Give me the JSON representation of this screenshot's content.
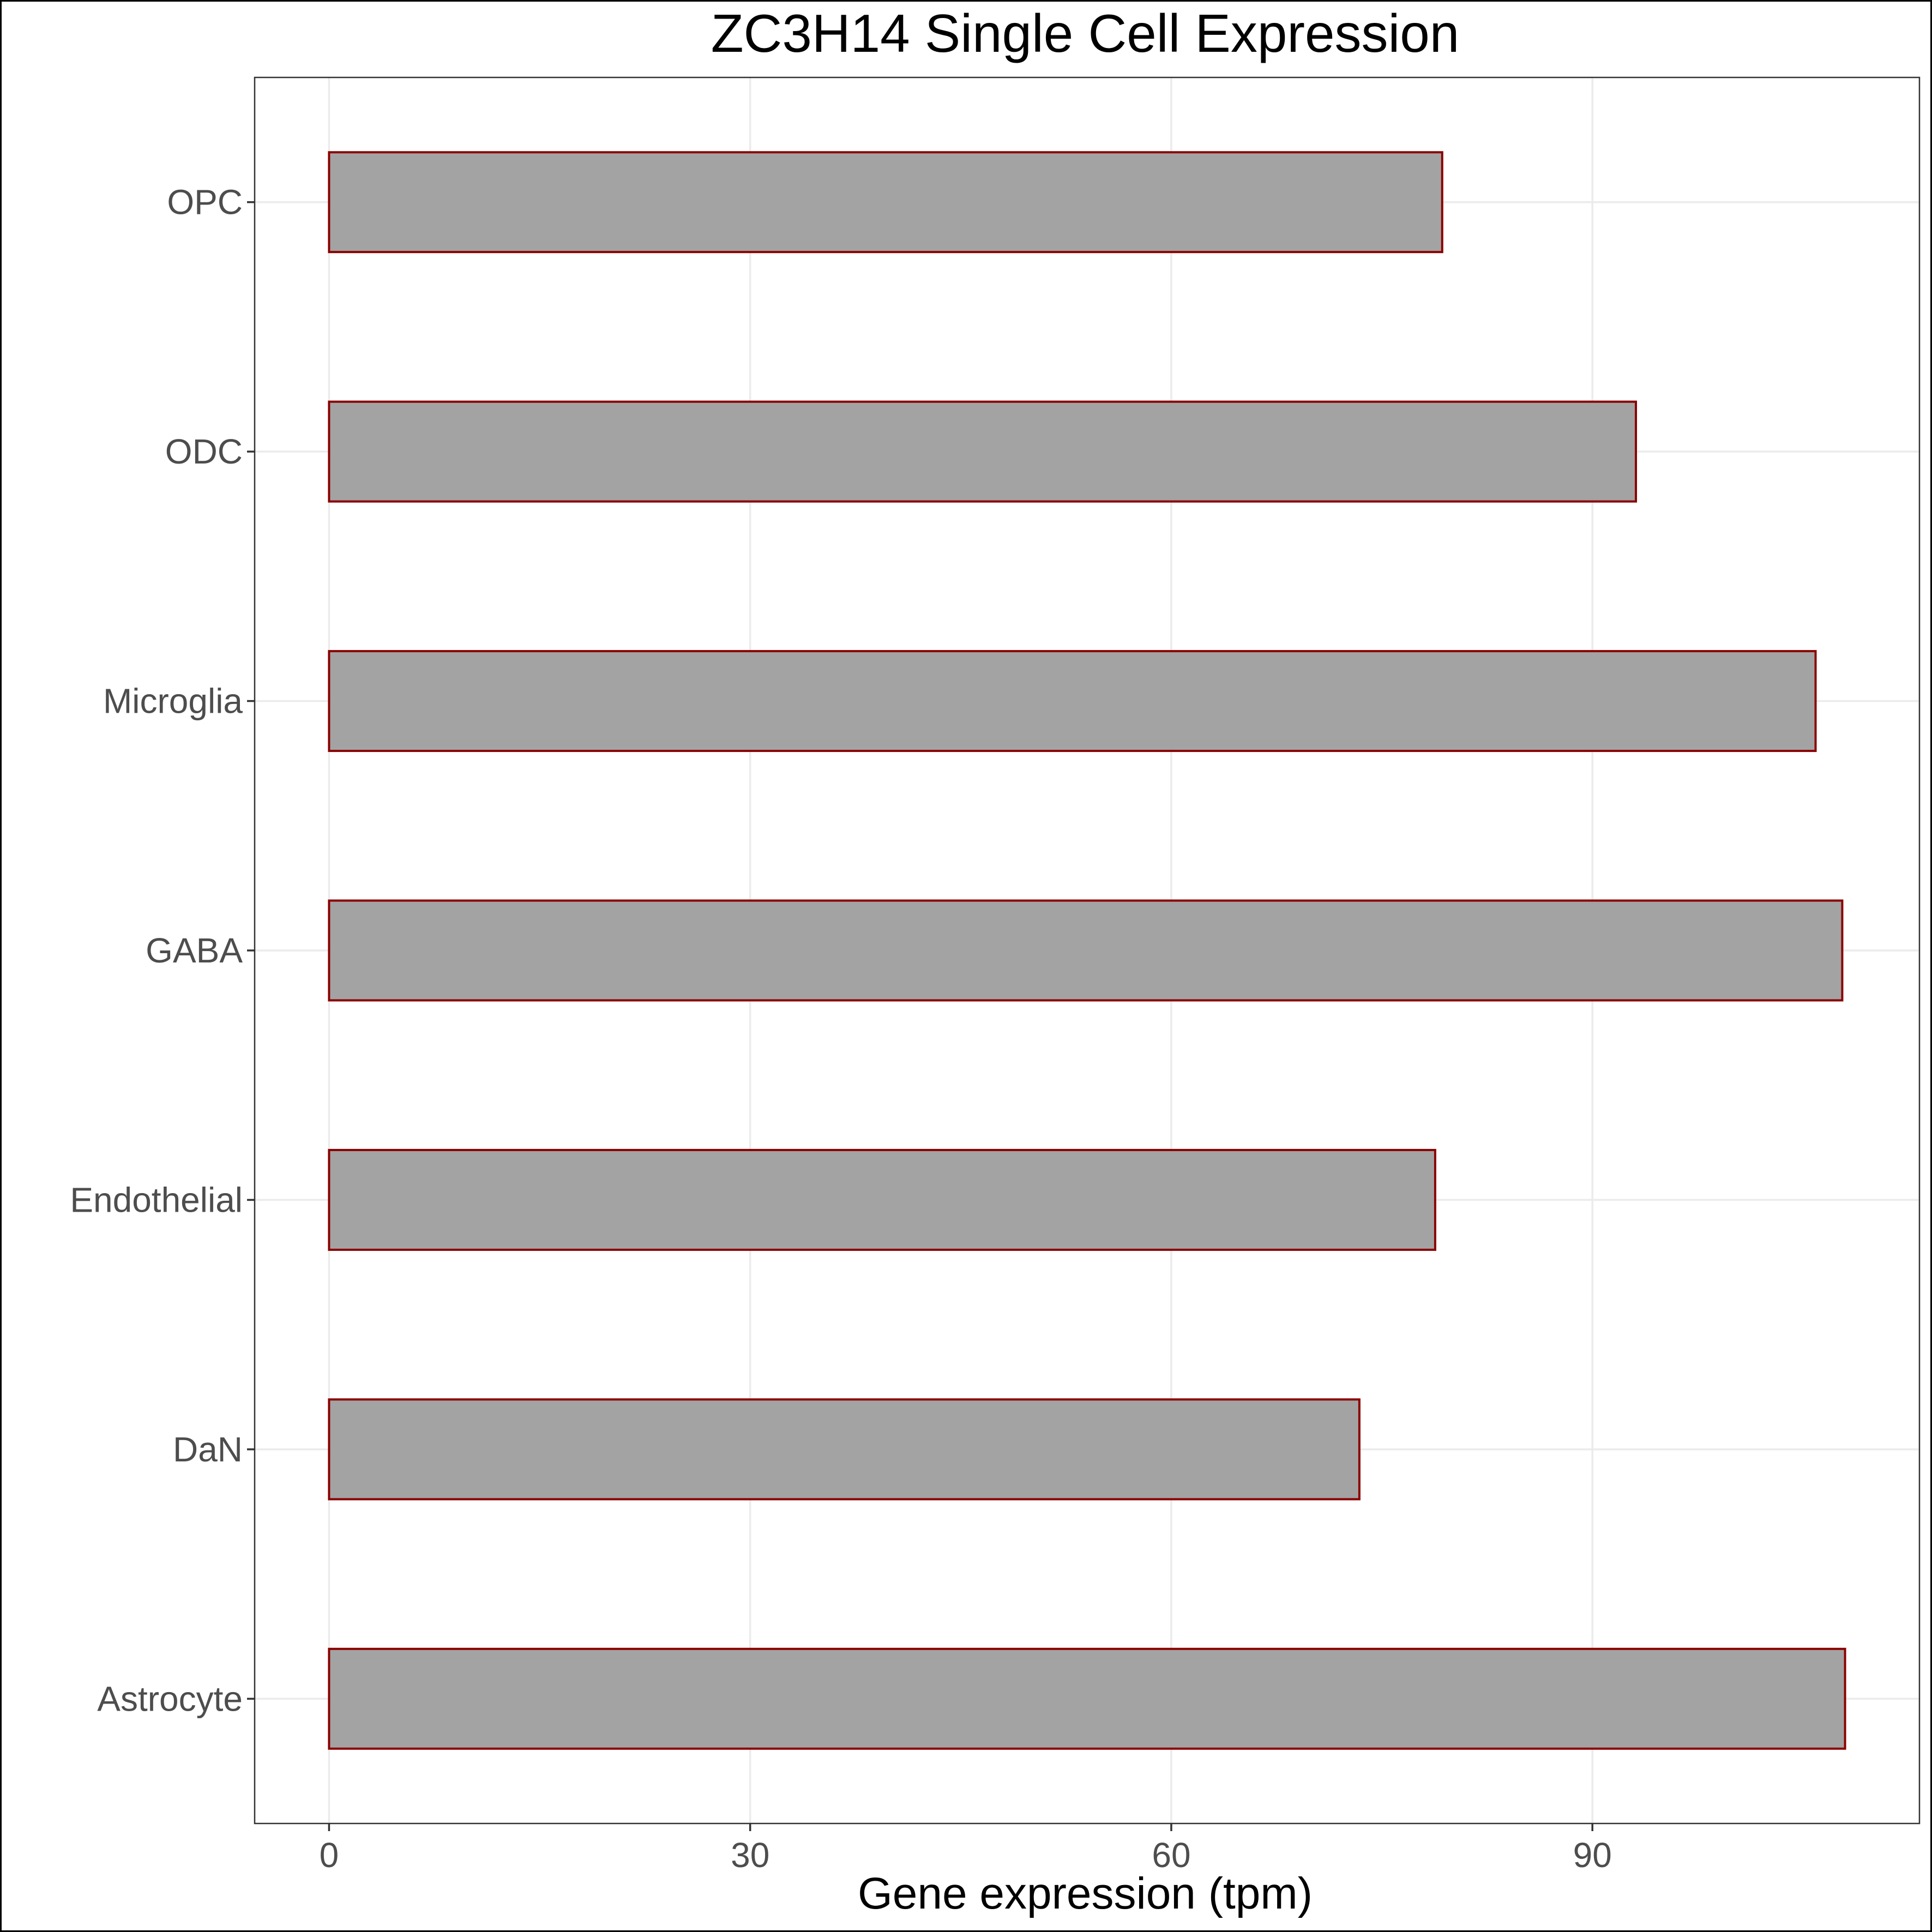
{
  "chart_data": {
    "type": "bar",
    "orientation": "horizontal",
    "title": "ZC3H14 Single Cell Expression",
    "xlabel": "Gene expression (tpm)",
    "ylabel": "",
    "categories": [
      "Astrocyte",
      "DaN",
      "Endothelial",
      "GABA",
      "Microglia",
      "ODC",
      "OPC"
    ],
    "values": [
      108.0,
      73.4,
      78.8,
      107.8,
      105.9,
      93.1,
      79.3
    ],
    "xlim": [
      -5.3,
      113.3
    ],
    "xticks": [
      0,
      30,
      60,
      90
    ],
    "grid": true,
    "legend": "none",
    "colors": {
      "bar_fill": "#a3a3a3",
      "bar_stroke": "#8b0000",
      "grid": "#ebebeb",
      "tick_text": "#4d4d4d"
    }
  }
}
